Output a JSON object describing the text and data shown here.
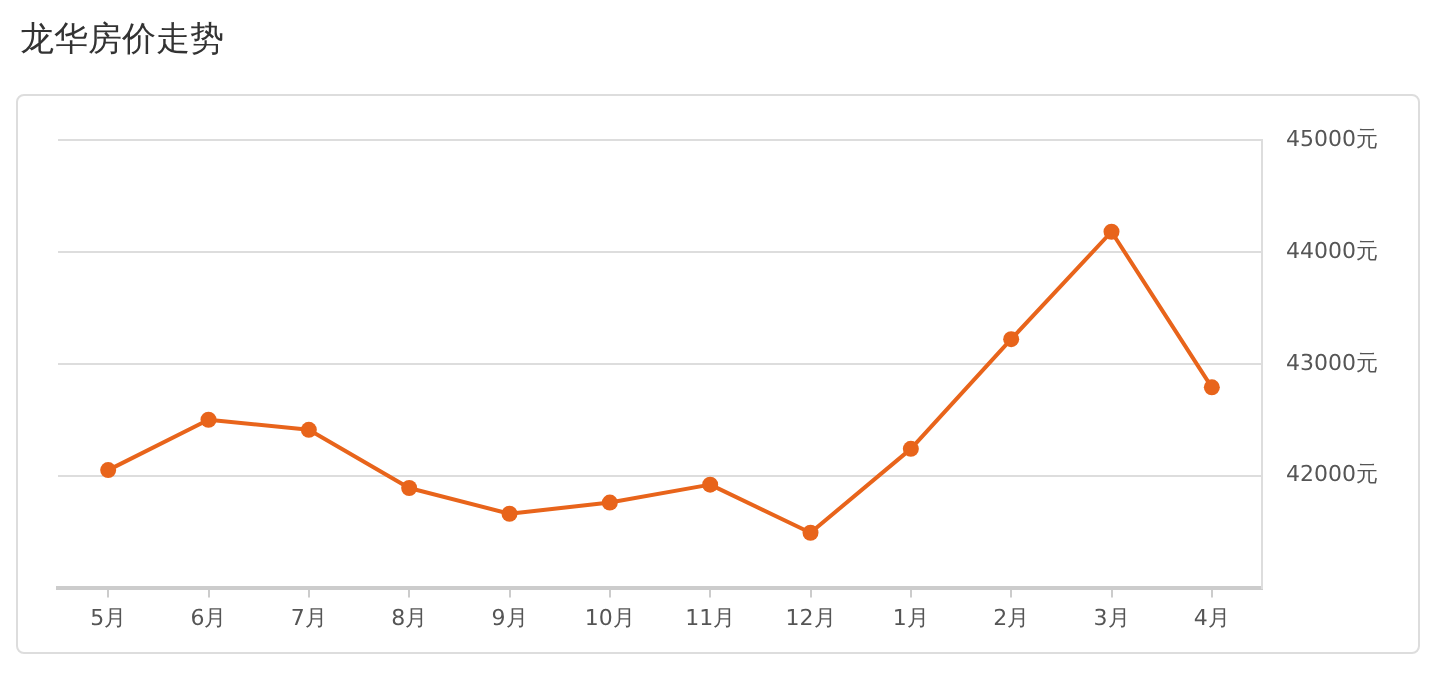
{
  "chart_data": {
    "type": "line",
    "title": "龙华房价走势",
    "categories": [
      "5月",
      "6月",
      "7月",
      "8月",
      "9月",
      "10月",
      "11月",
      "12月",
      "1月",
      "2月",
      "3月",
      "4月"
    ],
    "series": [
      {
        "color": "#e8641b",
        "values": [
          42050,
          42500,
          42410,
          41890,
          41660,
          41760,
          41920,
          41490,
          42240,
          43220,
          44180,
          42790
        ]
      }
    ],
    "ylim": [
      41000,
      45000
    ],
    "yticks": [
      {
        "value": 42000,
        "label": "42000元"
      },
      {
        "value": 43000,
        "label": "43000元"
      },
      {
        "value": 44000,
        "label": "44000元"
      },
      {
        "value": 45000,
        "label": "45000元"
      }
    ],
    "grid": "y",
    "legend": false,
    "marker": "circle",
    "line_style": "solid"
  }
}
